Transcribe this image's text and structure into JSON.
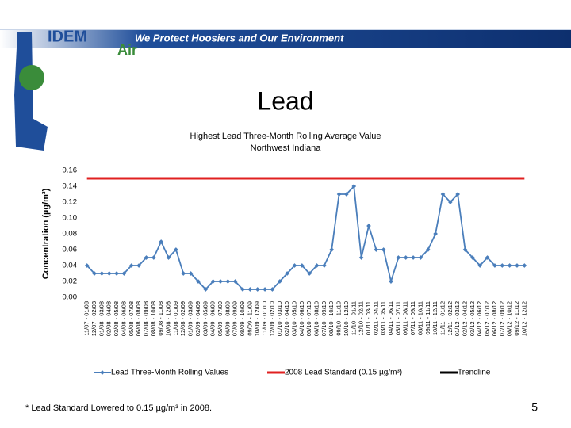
{
  "header": {
    "title": "IDEM",
    "slogan": "We Protect Hoosiers and Our Environment",
    "section": "Air"
  },
  "slide_title": "Lead",
  "footnote": "* Lead Standard Lowered to 0.15 µg/m³ in 2008.",
  "page_number": "5",
  "chart_data": {
    "type": "line",
    "title": [
      "Highest Lead Three-Month Rolling Average Value",
      "Northwest Indiana"
    ],
    "y_label": "Concentration (µg/m³)",
    "categories": [
      "11/07 - 01/08",
      "12/07 - 02/08",
      "01/08 - 03/08",
      "02/08 - 04/08",
      "03/08 - 05/08",
      "04/08 - 06/08",
      "05/08 - 07/08",
      "06/08 - 08/08",
      "07/08 - 09/08",
      "08/08 - 10/08",
      "09/08 - 11/08",
      "10/08 - 12/08",
      "11/08 - 01/09",
      "12/08 - 02/09",
      "01/09 - 03/09",
      "02/09 - 04/09",
      "03/09 - 05/09",
      "04/09 - 06/09",
      "05/09 - 07/09",
      "06/09 - 08/09",
      "07/09 - 09/09",
      "08/09 - 10/09",
      "09/09 - 11/09",
      "10/09 - 12/09",
      "11/09 - 01/10",
      "12/09 - 02/10",
      "01/10 - 03/10",
      "02/10 - 04/10",
      "03/10 - 05/10",
      "04/10 - 06/10",
      "05/10 - 07/10",
      "06/10 - 08/10",
      "07/10 - 09/10",
      "08/10 - 10/10",
      "09/10 - 11/10",
      "10/10 - 12/10",
      "11/10 - 01/11",
      "12/10 - 02/11",
      "01/11 - 03/11",
      "02/11 - 04/11",
      "03/11 - 05/11",
      "04/11 - 06/11",
      "05/11 - 07/11",
      "06/11 - 08/11",
      "07/11 - 09/11",
      "08/11 - 10/11",
      "09/11 - 11/11",
      "10/11 - 12/11",
      "11/11 - 01/12",
      "12/11 - 02/12",
      "01/12 - 03/12",
      "02/12 - 04/12",
      "03/12 - 05/12",
      "04/12 - 06/12",
      "05/12 - 07/12",
      "06/12 - 08/12",
      "07/12 - 09/12",
      "08/12 - 10/12",
      "09/12 - 11/12",
      "10/12 - 12/12"
    ],
    "series": [
      {
        "name": "Lead Three-Month Rolling Values",
        "color": "#4a7ebb",
        "markers": true,
        "values": [
          0.04,
          0.03,
          0.03,
          0.03,
          0.03,
          0.03,
          0.04,
          0.04,
          0.05,
          0.05,
          0.07,
          0.05,
          0.06,
          0.03,
          0.03,
          0.02,
          0.01,
          0.02,
          0.02,
          0.02,
          0.02,
          0.01,
          0.01,
          0.01,
          0.01,
          0.01,
          0.02,
          0.03,
          0.04,
          0.04,
          0.03,
          0.04,
          0.04,
          0.06,
          0.13,
          0.13,
          0.14,
          0.05,
          0.09,
          0.06,
          0.06,
          0.02,
          0.05,
          0.05,
          0.05,
          0.05,
          0.06,
          0.08,
          0.13,
          0.12,
          0.13,
          0.06,
          0.05,
          0.04,
          0.05,
          0.04,
          0.04,
          0.04,
          0.04,
          0.04
        ]
      },
      {
        "name": "2008 Lead Standard (0.15 µg/m³)",
        "color": "#e02020",
        "markers": false,
        "values": [
          0.15,
          0.15,
          0.15,
          0.15,
          0.15,
          0.15,
          0.15,
          0.15,
          0.15,
          0.15,
          0.15,
          0.15,
          0.15,
          0.15,
          0.15,
          0.15,
          0.15,
          0.15,
          0.15,
          0.15,
          0.15,
          0.15,
          0.15,
          0.15,
          0.15,
          0.15,
          0.15,
          0.15,
          0.15,
          0.15,
          0.15,
          0.15,
          0.15,
          0.15,
          0.15,
          0.15,
          0.15,
          0.15,
          0.15,
          0.15,
          0.15,
          0.15,
          0.15,
          0.15,
          0.15,
          0.15,
          0.15,
          0.15,
          0.15,
          0.15,
          0.15,
          0.15,
          0.15,
          0.15,
          0.15,
          0.15,
          0.15,
          0.15,
          0.15,
          0.15
        ]
      },
      {
        "name": "Trendline",
        "color": "#000000",
        "markers": false,
        "values": [
          null,
          null,
          null,
          null,
          null,
          null,
          null,
          null,
          null,
          null,
          null,
          null,
          null,
          null,
          null,
          null,
          null,
          null,
          null,
          null,
          null,
          null,
          null,
          null,
          null,
          null,
          null,
          null,
          null,
          null,
          null,
          null,
          null,
          null,
          null,
          null,
          null,
          null,
          null,
          null,
          null,
          null,
          null,
          null,
          null,
          null,
          null,
          null,
          null,
          null,
          null,
          null,
          null,
          null,
          null,
          null,
          null,
          null,
          null,
          null
        ]
      }
    ],
    "ylim": [
      0,
      0.16
    ],
    "yticks": [
      {
        "value": 0,
        "label": "0.00"
      },
      {
        "value": 0.02,
        "label": "0.02"
      },
      {
        "value": 0.04,
        "label": "0.04"
      },
      {
        "value": 0.06,
        "label": "0.06"
      },
      {
        "value": 0.08,
        "label": "0.08"
      },
      {
        "value": 0.1,
        "label": "0.10"
      },
      {
        "value": 0.12,
        "label": "0.12"
      },
      {
        "value": 0.14,
        "label": "0.14"
      },
      {
        "value": 0.16,
        "label": "0.16"
      }
    ],
    "grid": false,
    "legend": "bottom"
  }
}
